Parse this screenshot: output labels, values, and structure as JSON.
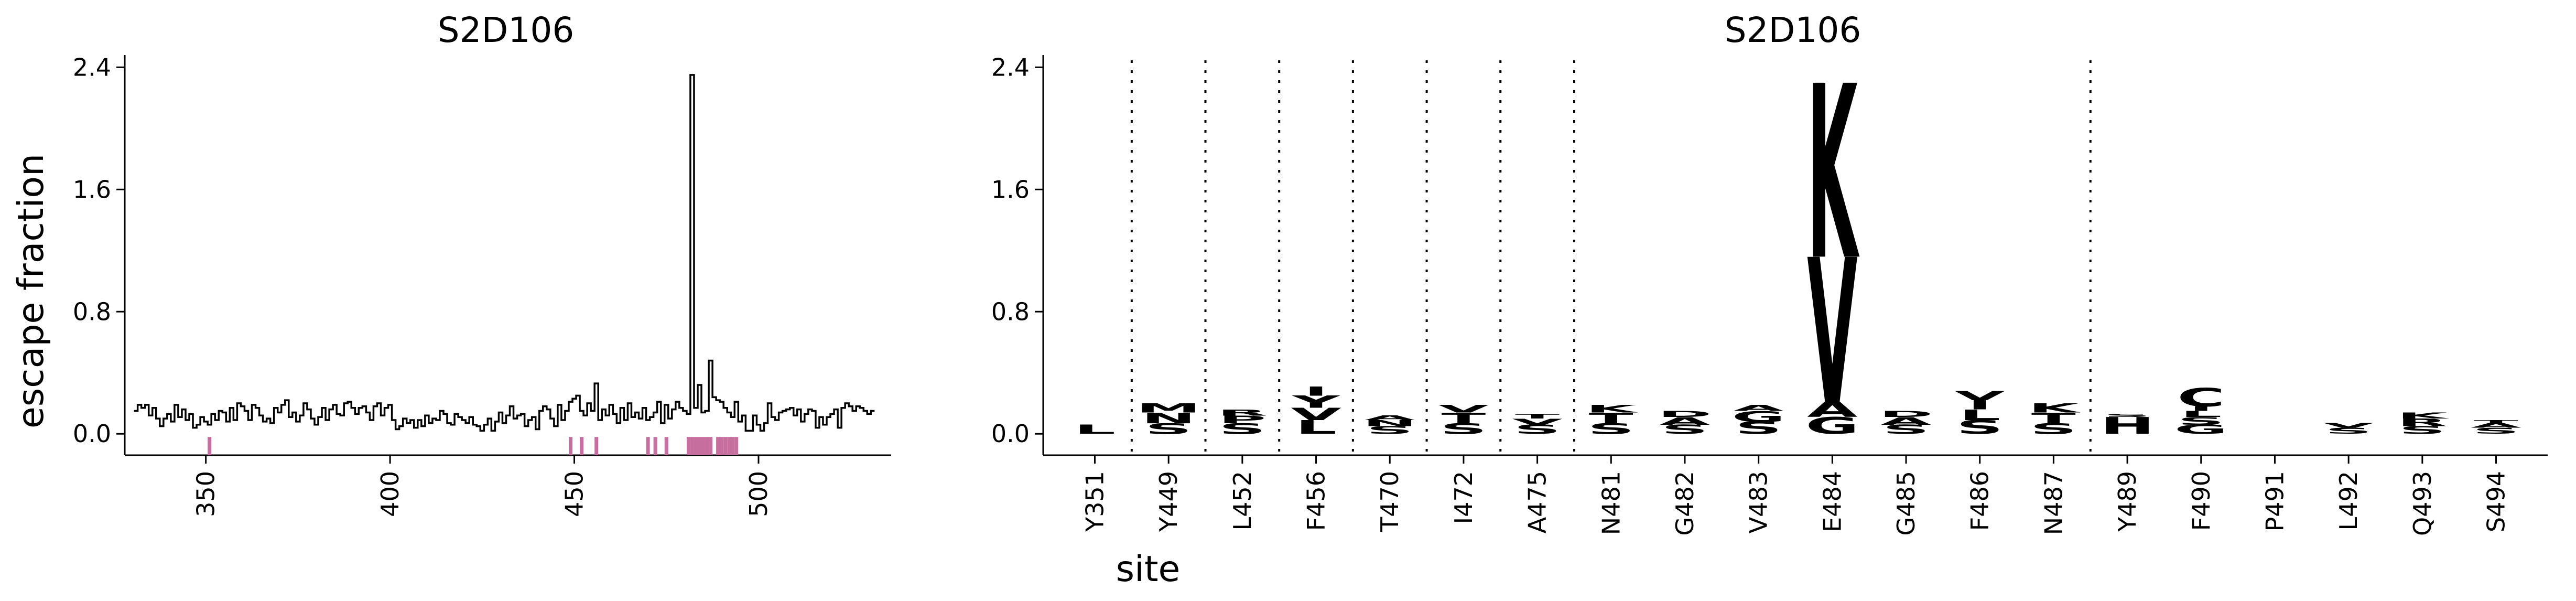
{
  "chart_data": [
    {
      "type": "line",
      "title": "S2D106",
      "ylabel": "escape fraction",
      "xlabel": "",
      "ylim": [
        -0.14,
        2.48
      ],
      "yticks": [
        0.0,
        0.8,
        1.6,
        2.4
      ],
      "ytick_labels": [
        "0.0",
        "0.8",
        "1.6",
        "2.4"
      ],
      "xlim": [
        328,
        536
      ],
      "xticks": [
        350,
        400,
        450,
        500
      ],
      "xtick_labels": [
        "350",
        "400",
        "450",
        "500"
      ],
      "grid": false,
      "legend": "none",
      "series": [
        {
          "x": [
            331,
            332,
            333,
            334,
            335,
            336,
            337,
            338,
            339,
            340,
            341,
            342,
            343,
            344,
            345,
            346,
            347,
            348,
            349,
            350,
            351,
            352,
            353,
            354,
            355,
            356,
            357,
            358,
            359,
            360,
            361,
            362,
            363,
            364,
            365,
            366,
            367,
            368,
            369,
            370,
            371,
            372,
            373,
            374,
            375,
            376,
            377,
            378,
            379,
            380,
            381,
            382,
            383,
            384,
            385,
            386,
            387,
            388,
            389,
            390,
            391,
            392,
            393,
            394,
            395,
            396,
            397,
            398,
            399,
            400,
            401,
            402,
            403,
            404,
            405,
            406,
            407,
            408,
            409,
            410,
            411,
            412,
            413,
            414,
            415,
            416,
            417,
            418,
            419,
            420,
            421,
            422,
            423,
            424,
            425,
            426,
            427,
            428,
            429,
            430,
            431,
            432,
            433,
            434,
            435,
            436,
            437,
            438,
            439,
            440,
            441,
            442,
            443,
            444,
            445,
            446,
            447,
            448,
            449,
            450,
            451,
            452,
            453,
            454,
            455,
            456,
            457,
            458,
            459,
            460,
            461,
            462,
            463,
            464,
            465,
            466,
            467,
            468,
            469,
            470,
            471,
            472,
            473,
            474,
            475,
            476,
            477,
            478,
            479,
            480,
            481,
            482,
            483,
            484,
            485,
            486,
            487,
            488,
            489,
            490,
            491,
            492,
            493,
            494,
            495,
            496,
            497,
            498,
            499,
            500,
            501,
            502,
            503,
            504,
            505,
            506,
            507,
            508,
            509,
            510,
            511,
            512,
            513,
            514,
            515,
            516,
            517,
            518,
            519,
            520,
            521,
            522,
            523,
            524,
            525,
            526,
            527,
            528,
            529,
            530,
            531
          ],
          "y": [
            0.15,
            0.19,
            0.17,
            0.19,
            0.12,
            0.17,
            0.1,
            0.05,
            0.1,
            0.13,
            0.08,
            0.19,
            0.11,
            0.16,
            0.09,
            0.13,
            0.04,
            0.06,
            0.11,
            0.08,
            0.06,
            0.13,
            0.09,
            0.15,
            0.14,
            0.08,
            0.17,
            0.09,
            0.2,
            0.18,
            0.15,
            0.09,
            0.19,
            0.17,
            0.12,
            0.08,
            0.1,
            0.07,
            0.17,
            0.14,
            0.19,
            0.22,
            0.11,
            0.14,
            0.08,
            0.12,
            0.2,
            0.16,
            0.1,
            0.06,
            0.11,
            0.17,
            0.09,
            0.16,
            0.19,
            0.13,
            0.12,
            0.2,
            0.21,
            0.17,
            0.13,
            0.17,
            0.18,
            0.14,
            0.09,
            0.18,
            0.2,
            0.12,
            0.17,
            0.19,
            0.09,
            0.03,
            0.05,
            0.1,
            0.07,
            0.09,
            0.04,
            0.09,
            0.05,
            0.12,
            0.07,
            0.1,
            0.09,
            0.15,
            0.13,
            0.07,
            0.06,
            0.13,
            0.11,
            0.09,
            0.07,
            0.11,
            0.06,
            0.05,
            0.02,
            0.06,
            0.1,
            0.02,
            0.08,
            0.14,
            0.07,
            0.12,
            0.18,
            0.1,
            0.12,
            0.13,
            0.05,
            0.09,
            0.11,
            0.03,
            0.15,
            0.18,
            0.16,
            0.1,
            0.05,
            0.19,
            0.09,
            0.15,
            0.21,
            0.23,
            0.25,
            0.15,
            0.12,
            0.2,
            0.15,
            0.33,
            0.09,
            0.16,
            0.12,
            0.19,
            0.13,
            0.07,
            0.17,
            0.09,
            0.2,
            0.11,
            0.14,
            0.1,
            0.17,
            0.09,
            0.11,
            0.14,
            0.21,
            0.07,
            0.19,
            0.1,
            0.16,
            0.21,
            0.17,
            0.15,
            0.13,
            2.35,
            0.17,
            0.32,
            0.14,
            0.15,
            0.48,
            0.24,
            0.22,
            0.21,
            0.17,
            0.14,
            0.11,
            0.21,
            0.08,
            0.12,
            0.02,
            0.02,
            0.12,
            0.06,
            0.02,
            0.07,
            0.2,
            0.11,
            0.09,
            0.14,
            0.15,
            0.16,
            0.17,
            0.12,
            0.16,
            0.08,
            0.13,
            0.16,
            0.15,
            0.04,
            0.11,
            0.06,
            0.11,
            0.13,
            0.16,
            0.04,
            0.17,
            0.2,
            0.18,
            0.15,
            0.18,
            0.17,
            0.15,
            0.13,
            0.15
          ]
        }
      ],
      "highlighted_sites": [
        351,
        449,
        452,
        456,
        470,
        472,
        475,
        481,
        482,
        483,
        484,
        485,
        486,
        487,
        489,
        490,
        491,
        492,
        493,
        494
      ],
      "highlight_color": "#c66f9f"
    },
    {
      "type": "logo",
      "title": "S2D106",
      "xlabel": "site",
      "ylabel": "",
      "ylim": [
        -0.14,
        2.48
      ],
      "yticks": [
        0.0,
        0.8,
        1.6,
        2.4
      ],
      "ytick_labels": [
        "0.0",
        "0.8",
        "1.6",
        "2.4"
      ],
      "grid": false,
      "legend": "none",
      "categories": [
        "Y351",
        "Y449",
        "L452",
        "F456",
        "T470",
        "I472",
        "A475",
        "N481",
        "G482",
        "V483",
        "E484",
        "G485",
        "F486",
        "N487",
        "Y489",
        "F490",
        "P491",
        "L492",
        "Q493",
        "S494"
      ],
      "separators_after": [
        "Y351",
        "Y449",
        "L452",
        "F456",
        "T470",
        "I472",
        "A475",
        "N487"
      ],
      "stacks": [
        [
          {
            "letter": "L",
            "value": 0.06
          }
        ],
        [
          {
            "letter": "S",
            "value": 0.07
          },
          {
            "letter": "N",
            "value": 0.07
          },
          {
            "letter": "M",
            "value": 0.06
          }
        ],
        [
          {
            "letter": "S",
            "value": 0.07
          },
          {
            "letter": "P",
            "value": 0.05
          },
          {
            "letter": "R",
            "value": 0.04
          }
        ],
        [
          {
            "letter": "L",
            "value": 0.09
          },
          {
            "letter": "V",
            "value": 0.08
          },
          {
            "letter": "Y",
            "value": 0.08
          },
          {
            "letter": "I",
            "value": 0.06
          }
        ],
        [
          {
            "letter": "S",
            "value": 0.05
          },
          {
            "letter": "N",
            "value": 0.04
          },
          {
            "letter": "A",
            "value": 0.03
          }
        ],
        [
          {
            "letter": "S",
            "value": 0.07
          },
          {
            "letter": "T",
            "value": 0.07
          },
          {
            "letter": "V",
            "value": 0.05
          }
        ],
        [
          {
            "letter": "S",
            "value": 0.06
          },
          {
            "letter": "V",
            "value": 0.04
          },
          {
            "letter": "T",
            "value": 0.03
          }
        ],
        [
          {
            "letter": "S",
            "value": 0.07
          },
          {
            "letter": "T",
            "value": 0.07
          },
          {
            "letter": "K",
            "value": 0.05
          }
        ],
        [
          {
            "letter": "S",
            "value": 0.06
          },
          {
            "letter": "A",
            "value": 0.05
          },
          {
            "letter": "D",
            "value": 0.04
          }
        ],
        [
          {
            "letter": "S",
            "value": 0.08
          },
          {
            "letter": "G",
            "value": 0.07
          },
          {
            "letter": "A",
            "value": 0.04
          }
        ],
        [
          {
            "letter": "G",
            "value": 0.11
          },
          {
            "letter": "A",
            "value": 0.1
          },
          {
            "letter": "V",
            "value": 0.95
          },
          {
            "letter": "K",
            "value": 1.14
          }
        ],
        [
          {
            "letter": "S",
            "value": 0.06
          },
          {
            "letter": "A",
            "value": 0.05
          },
          {
            "letter": "D",
            "value": 0.04
          }
        ],
        [
          {
            "letter": "S",
            "value": 0.09
          },
          {
            "letter": "L",
            "value": 0.07
          },
          {
            "letter": "I",
            "value": 0.06
          },
          {
            "letter": "V",
            "value": 0.06
          }
        ],
        [
          {
            "letter": "S",
            "value": 0.07
          },
          {
            "letter": "T",
            "value": 0.07
          },
          {
            "letter": "K",
            "value": 0.06
          }
        ],
        [
          {
            "letter": "H",
            "value": 0.11
          },
          {
            "letter": "S",
            "value": 0.02
          }
        ],
        [
          {
            "letter": "G",
            "value": 0.06
          },
          {
            "letter": "S",
            "value": 0.05
          },
          {
            "letter": "L",
            "value": 0.04
          },
          {
            "letter": "I",
            "value": 0.03
          },
          {
            "letter": "C",
            "value": 0.12
          }
        ],
        [],
        [
          {
            "letter": "S",
            "value": 0.04
          },
          {
            "letter": "V",
            "value": 0.03
          }
        ],
        [
          {
            "letter": "S",
            "value": 0.05
          },
          {
            "letter": "R",
            "value": 0.05
          },
          {
            "letter": "K",
            "value": 0.04
          }
        ],
        [
          {
            "letter": "S",
            "value": 0.04
          },
          {
            "letter": "A",
            "value": 0.03
          },
          {
            "letter": "T",
            "value": 0.02
          }
        ]
      ]
    }
  ]
}
